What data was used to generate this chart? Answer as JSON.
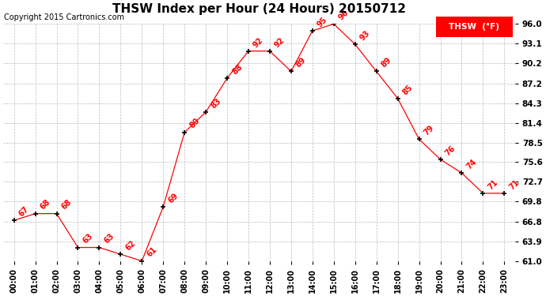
{
  "title": "THSW Index per Hour (24 Hours) 20150712",
  "copyright": "Copyright 2015 Cartronics.com",
  "legend_label": "THSW  (°F)",
  "hours": [
    "00:00",
    "01:00",
    "02:00",
    "03:00",
    "04:00",
    "05:00",
    "06:00",
    "07:00",
    "08:00",
    "09:00",
    "10:00",
    "11:00",
    "12:00",
    "13:00",
    "14:00",
    "15:00",
    "16:00",
    "17:00",
    "18:00",
    "19:00",
    "20:00",
    "21:00",
    "22:00",
    "23:00"
  ],
  "values": [
    67,
    68,
    68,
    63,
    63,
    62,
    61,
    69,
    80,
    83,
    88,
    92,
    92,
    89,
    95,
    96,
    93,
    89,
    85,
    79,
    76,
    74,
    71,
    71
  ],
  "ylim_min": 61.0,
  "ylim_max": 96.0,
  "yticks": [
    61.0,
    63.9,
    66.8,
    69.8,
    72.7,
    75.6,
    78.5,
    81.4,
    84.3,
    87.2,
    90.2,
    93.1,
    96.0
  ],
  "line_color": "red",
  "marker": "+",
  "marker_color": "black",
  "label_color": "red",
  "background_color": "white",
  "grid_color": "#bbbbbb",
  "title_fontsize": 11,
  "copyright_fontsize": 7,
  "label_fontsize": 7,
  "tick_fontsize": 7,
  "ytick_fontsize": 7.5,
  "legend_bg": "red",
  "legend_text_color": "white",
  "legend_fontsize": 7.5
}
